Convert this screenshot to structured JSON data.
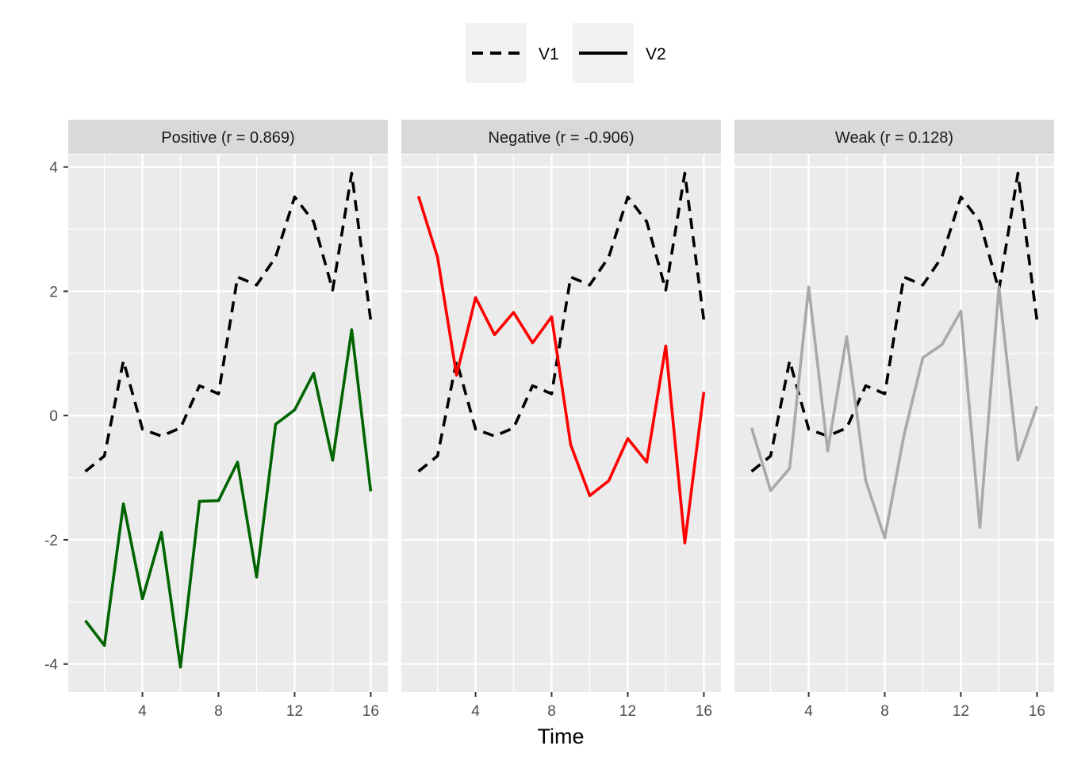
{
  "chart_data": {
    "type": "line",
    "xlabel": "Time",
    "ylabel": "",
    "xlim": [
      0.1,
      16.9
    ],
    "ylim": [
      -4.45,
      4.2
    ],
    "x_ticks": [
      4,
      8,
      12,
      16
    ],
    "x_minor": [
      2,
      6,
      10,
      14
    ],
    "y_ticks": [
      -4,
      -2,
      0,
      2,
      4
    ],
    "y_minor": [
      -3,
      -1,
      1,
      3
    ],
    "legend": {
      "position": "top",
      "entries": [
        {
          "label": "V1",
          "linetype": "dashed"
        },
        {
          "label": "V2",
          "linetype": "solid"
        }
      ]
    },
    "x": [
      1,
      2,
      3,
      4,
      5,
      6,
      7,
      8,
      9,
      10,
      11,
      12,
      13,
      14,
      15,
      16
    ],
    "v1": [
      -0.9,
      -0.65,
      0.88,
      -0.22,
      -0.33,
      -0.2,
      0.48,
      0.35,
      2.23,
      2.1,
      2.55,
      3.52,
      3.12,
      2.02,
      3.9,
      1.53
    ],
    "panels": [
      {
        "strip": "Positive (r = 0.869)",
        "color": "#006400",
        "v2": [
          -3.3,
          -3.7,
          -1.42,
          -2.95,
          -1.88,
          -4.05,
          -1.38,
          -1.37,
          -0.75,
          -2.6,
          -0.14,
          0.09,
          0.68,
          -0.72,
          1.38,
          -1.22
        ]
      },
      {
        "strip": "Negative (r = -0.906)",
        "color": "#ff0000",
        "v2": [
          3.53,
          2.55,
          0.65,
          1.9,
          1.3,
          1.66,
          1.17,
          1.59,
          -0.47,
          -1.29,
          -1.05,
          -0.37,
          -0.75,
          1.12,
          -2.05,
          0.38
        ]
      },
      {
        "strip": "Weak (r = 0.128)",
        "color": "#a9a9a9",
        "v2": [
          -0.2,
          -1.21,
          -0.85,
          2.07,
          -0.57,
          1.27,
          -1.05,
          -1.97,
          -0.33,
          0.93,
          1.14,
          1.68,
          -1.8,
          2.07,
          -0.72,
          0.15
        ]
      }
    ]
  }
}
